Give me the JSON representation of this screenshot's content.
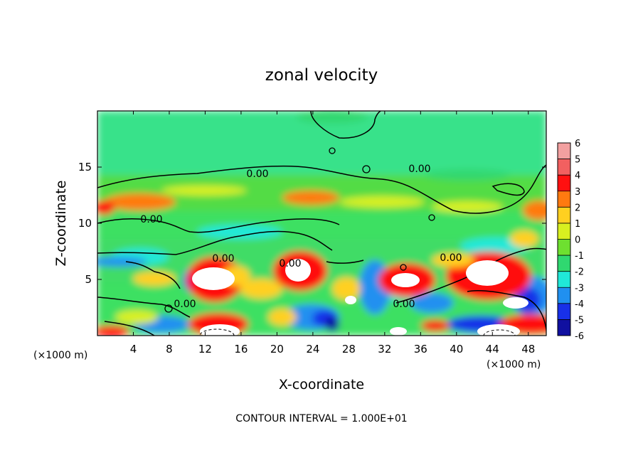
{
  "chart_data": {
    "type": "heatmap",
    "title": "zonal velocity",
    "xlabel": "X-coordinate",
    "ylabel": "Z-coordinate",
    "x_unit_left": "(×1000 m)",
    "x_unit_right": "(×1000 m)",
    "xlim": [
      0,
      50
    ],
    "ylim": [
      0,
      20
    ],
    "x_ticks": [
      4,
      8,
      12,
      16,
      20,
      24,
      28,
      32,
      36,
      40,
      44,
      48
    ],
    "y_ticks": [
      5,
      10,
      15
    ],
    "footer": "CONTOUR INTERVAL = 1.000E+01",
    "contour_labels": [
      "0.00",
      "0.00",
      "0.00",
      "0.00",
      "0.00",
      "0.00",
      "0.00",
      "0.00"
    ],
    "colorbar": {
      "ticks": [
        6,
        5,
        4,
        3,
        2,
        1,
        0,
        -1,
        -2,
        -3,
        -4,
        -5,
        -6
      ],
      "levels": [
        {
          "value": 6,
          "color": "#f2a0a0"
        },
        {
          "value": 5,
          "color": "#f26060"
        },
        {
          "value": 4,
          "color": "#ff1010"
        },
        {
          "value": 3,
          "color": "#ff7a10"
        },
        {
          "value": 2,
          "color": "#ffd020"
        },
        {
          "value": 1,
          "color": "#d8f020"
        },
        {
          "value": 0,
          "color": "#6ee030"
        },
        {
          "value": -1,
          "color": "#30d870"
        },
        {
          "value": -2,
          "color": "#20e8d8"
        },
        {
          "value": -3,
          "color": "#2090f0"
        },
        {
          "value": -4,
          "color": "#1830e8"
        },
        {
          "value": -5,
          "color": "#1010a0"
        },
        {
          "value": -6,
          "color": "#8020a8"
        }
      ]
    }
  }
}
